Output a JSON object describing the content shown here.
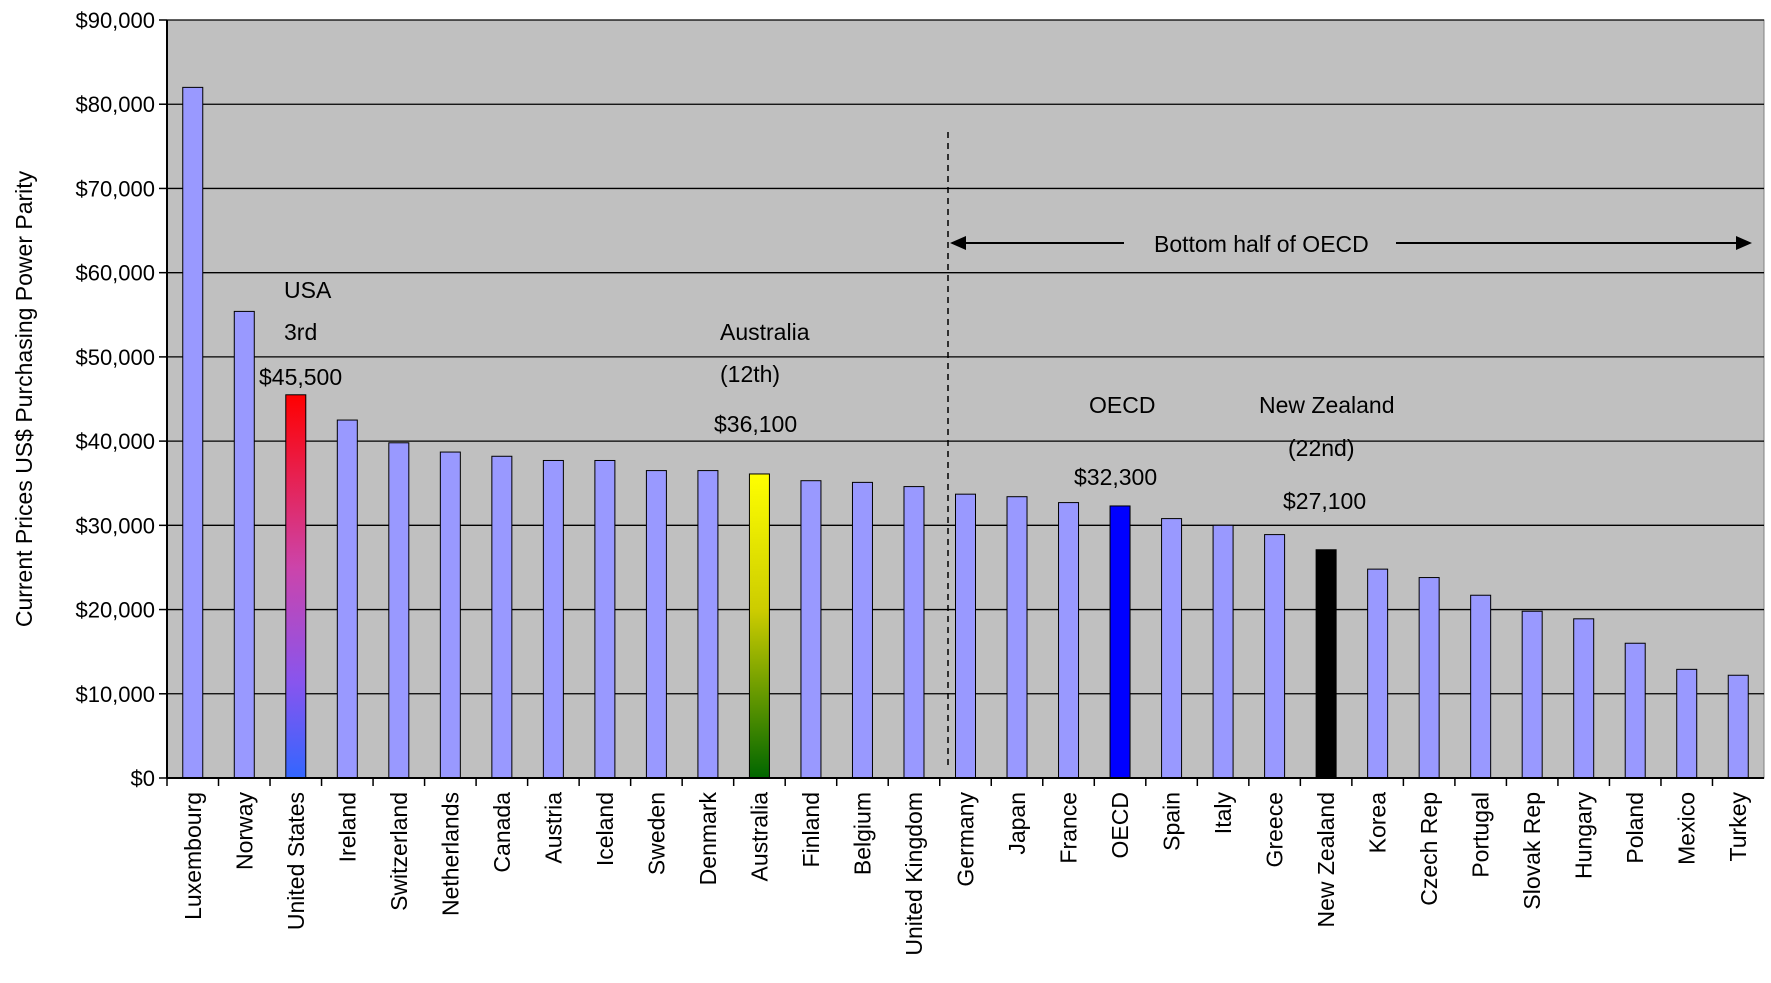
{
  "chart_data": {
    "type": "bar",
    "title": "",
    "xlabel": "",
    "ylabel": "Current Prices US$ Purchasing Power Parity",
    "ylim": [
      0,
      90000
    ],
    "y_ticks": [
      "$0",
      "$10,000",
      "$20,000",
      "$30,000",
      "$40,000",
      "$50,000",
      "$60,000",
      "$70,000",
      "$80,000",
      "$90,000"
    ],
    "y_tick_values": [
      0,
      10000,
      20000,
      30000,
      40000,
      50000,
      60000,
      70000,
      80000,
      90000
    ],
    "grid": true,
    "legend": "none",
    "categories": [
      "Luxembourg",
      "Norway",
      "United States",
      "Ireland",
      "Switzerland",
      "Netherlands",
      "Canada",
      "Austria",
      "Iceland",
      "Sweden",
      "Denmark",
      "Australia",
      "Finland",
      "Belgium",
      "United Kingdom",
      "Germany",
      "Japan",
      "France",
      "OECD",
      "Spain",
      "Italy",
      "Greece",
      "New Zealand",
      "Korea",
      "Czech Rep",
      "Portugal",
      "Slovak Rep",
      "Hungary",
      "Poland",
      "Mexico",
      "Turkey"
    ],
    "values": [
      82000,
      55400,
      45500,
      42500,
      39800,
      38700,
      38200,
      37700,
      37700,
      36500,
      36500,
      36100,
      35300,
      35100,
      34600,
      33700,
      33400,
      32700,
      32300,
      30800,
      30000,
      28900,
      27100,
      24800,
      23800,
      21700,
      19800,
      18900,
      16000,
      12900,
      12200
    ],
    "colors": {
      "default_bar": "#9999ff",
      "background": "#c0c0c0",
      "grid": "#000000",
      "united_states_top": "#ff0000",
      "united_states_bottom": "#3366ff",
      "australia_top": "#ffff00",
      "australia_bottom": "#006600",
      "oecd": "#0000ff",
      "new_zealand": "#000000"
    },
    "annotations": {
      "usa": [
        "USA",
        "3rd",
        "$45,500"
      ],
      "australia": [
        "Australia",
        "(12th)",
        "$36,100"
      ],
      "oecd": [
        "OECD",
        "$32,300"
      ],
      "new_zealand": [
        "New Zealand",
        "(22nd)",
        "$27,100"
      ],
      "bottom_half": "Bottom half of OECD"
    }
  }
}
